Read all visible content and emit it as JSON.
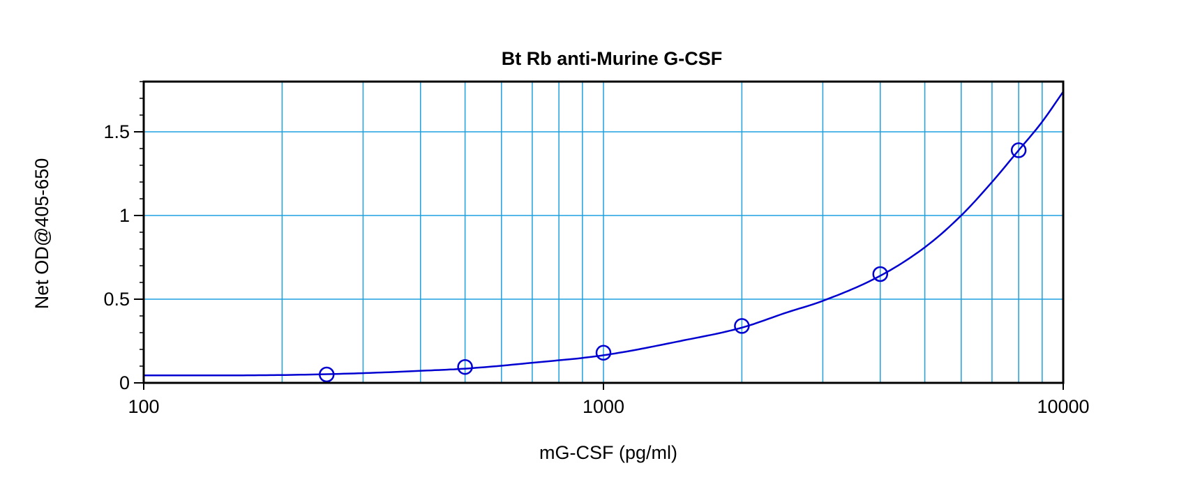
{
  "colors": {
    "grid": "#1ea0e0",
    "curve": "#0000d0",
    "marker": "#0000d0",
    "axis": "#000000",
    "background": "#ffffff"
  },
  "chart_data": {
    "type": "scatter",
    "title": "Bt Rb anti-Murine G-CSF",
    "xlabel": "mG-CSF (pg/ml)",
    "ylabel": "Net OD@405-650",
    "xscale": "log",
    "xlim": [
      100,
      10000
    ],
    "ylim": [
      0,
      1.8
    ],
    "x_ticks": [
      100,
      1000,
      10000
    ],
    "x_tick_labels": [
      "100",
      "1000",
      "10000"
    ],
    "y_ticks": [
      0,
      0.5,
      1,
      1.5
    ],
    "y_tick_labels": [
      "0",
      "0.5",
      "1",
      "1.5"
    ],
    "grid": true,
    "legend": "none",
    "series": [
      {
        "type": "scatter",
        "marker": "open-circle",
        "x": [
          250,
          500,
          1000,
          2000,
          4000,
          8000
        ],
        "y": [
          0.05,
          0.095,
          0.18,
          0.34,
          0.65,
          1.39
        ]
      },
      {
        "type": "line",
        "x": [
          100,
          150,
          200,
          250,
          300,
          400,
          500,
          700,
          1000,
          1500,
          2000,
          2500,
          3000,
          4000,
          5000,
          6000,
          7000,
          8000,
          9000,
          10000
        ],
        "y": [
          0.045,
          0.045,
          0.047,
          0.052,
          0.058,
          0.072,
          0.085,
          0.12,
          0.165,
          0.255,
          0.33,
          0.42,
          0.49,
          0.64,
          0.81,
          1.0,
          1.2,
          1.39,
          1.56,
          1.74
        ]
      }
    ]
  }
}
